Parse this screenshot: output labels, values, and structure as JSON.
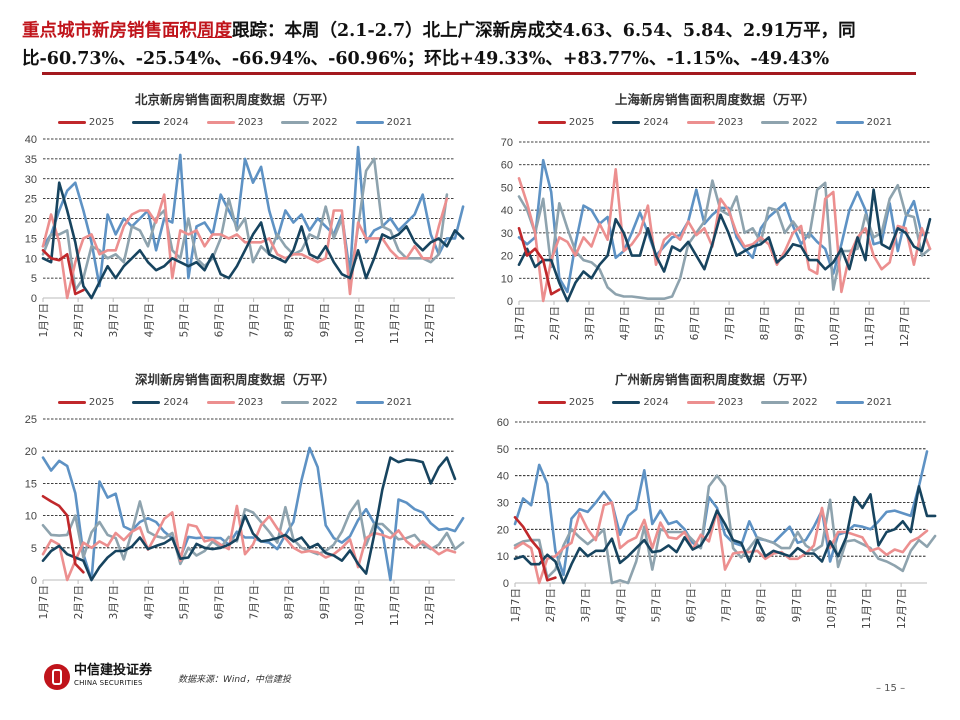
{
  "headline": {
    "highlight": "重点城市新房销售面积",
    "highlight_underlined": "周度",
    "rest": "跟踪：本周（2.1-2.7）北上广深新房成交4.63、6.54、5.84、2.91万平，同比-60.73%、-25.54%、-66.94%、-60.96%；环比+49.33%、+83.77%、-1.15%、-49.43%"
  },
  "footer": {
    "logo_cn": "中信建投证券",
    "logo_en": "CHINA SECURITIES",
    "source": "数据来源：Wind，中信建投",
    "page": "– 15 –"
  },
  "colors": {
    "2025": "#c0282b",
    "2024": "#17445f",
    "2023": "#ec8f8f",
    "2022": "#8ea3ae",
    "2021": "#5e92c4"
  },
  "chart_data": [
    {
      "id": "bj",
      "type": "line",
      "title": "北京新房销售面积周度数据（万平）",
      "ylim": [
        0,
        40
      ],
      "ystep": 5,
      "grid": true,
      "legend": "top",
      "x_ticks": [
        "1月7日",
        "2月7日",
        "3月7日",
        "4月7日",
        "5月7日",
        "6月7日",
        "7月7日",
        "8月7日",
        "9月7日",
        "10月7日",
        "11月7日",
        "12月7日"
      ],
      "series": [
        {
          "name": "2025",
          "values": [
            12,
            10,
            9.5,
            11,
            1,
            2
          ]
        },
        {
          "name": "2024",
          "values": [
            10,
            9,
            29,
            22,
            14,
            3,
            0,
            4,
            8,
            5,
            8,
            10,
            12,
            9,
            7,
            8,
            10,
            9,
            8,
            9,
            7,
            11,
            6,
            5,
            8,
            12,
            16,
            19,
            11,
            10,
            9,
            12,
            18,
            11,
            10,
            13,
            9,
            6,
            5,
            12,
            5,
            10,
            16,
            15,
            16,
            18,
            14,
            12,
            14,
            15,
            13,
            17,
            15
          ]
        },
        {
          "name": "2023",
          "values": [
            13,
            21,
            14,
            0,
            9,
            15,
            16,
            11,
            12,
            12,
            18,
            21,
            22,
            22,
            19,
            26,
            5,
            17,
            16,
            17,
            13,
            16,
            16,
            15,
            16,
            14,
            14,
            14,
            15,
            11,
            10,
            11,
            11,
            10,
            9,
            10,
            22,
            22,
            1,
            19,
            15,
            15,
            15,
            12,
            10,
            10,
            13,
            10,
            10,
            18,
            25
          ]
        },
        {
          "name": "2022",
          "values": [
            11,
            16,
            16,
            17,
            2,
            5,
            13,
            12,
            10,
            11,
            9,
            18,
            17,
            13,
            20,
            22,
            12,
            10,
            20,
            10,
            8,
            10,
            15,
            25,
            17,
            20,
            9,
            13,
            11,
            16,
            13,
            11,
            12,
            16,
            15,
            23,
            15,
            20,
            4,
            18,
            32,
            35,
            18,
            17,
            12,
            10,
            10,
            10,
            9,
            11,
            26
          ]
        },
        {
          "name": "2021",
          "values": [
            13,
            16,
            22,
            27,
            29,
            22,
            14,
            3,
            21,
            16,
            20,
            18,
            20,
            22,
            12,
            20,
            19,
            36,
            5,
            18,
            19,
            16,
            26,
            22,
            18,
            35,
            29,
            33,
            22,
            15,
            22,
            19,
            21,
            17,
            20,
            18,
            16,
            21,
            6,
            38,
            14,
            17,
            18,
            20,
            17,
            19,
            21,
            26,
            16,
            11,
            15,
            15,
            23
          ]
        }
      ]
    },
    {
      "id": "sh",
      "type": "line",
      "title": "上海新房销售面积周度数据（万平）",
      "ylim": [
        0,
        70
      ],
      "ystep": 10,
      "grid": true,
      "legend": "top",
      "x_ticks": [
        "1月7日",
        "2月7日",
        "3月7日",
        "4月7日",
        "5月7日",
        "6月7日",
        "7月7日",
        "8月7日",
        "9月7日",
        "10月7日",
        "11月7日",
        "12月7日"
      ],
      "series": [
        {
          "name": "2025",
          "values": [
            32,
            20,
            23,
            18,
            3,
            5
          ]
        },
        {
          "name": "2024",
          "values": [
            16,
            23,
            15,
            18,
            18,
            8,
            0,
            8,
            13,
            10,
            16,
            20,
            36,
            30,
            20,
            20,
            32,
            20,
            13,
            24,
            22,
            26,
            20,
            14,
            25,
            38,
            30,
            20,
            22,
            24,
            25,
            28,
            17,
            20,
            25,
            24,
            18,
            18,
            14,
            17,
            23,
            14,
            28,
            18,
            49,
            25,
            23,
            32,
            30,
            24,
            22,
            36
          ]
        },
        {
          "name": "2023",
          "values": [
            54,
            43,
            30,
            0,
            18,
            28,
            26,
            20,
            28,
            24,
            34,
            27,
            58,
            22,
            25,
            30,
            42,
            16,
            27,
            30,
            27,
            35,
            29,
            32,
            24,
            45,
            40,
            30,
            24,
            25,
            28,
            25,
            16,
            22,
            30,
            33,
            14,
            12,
            45,
            48,
            4,
            20,
            28,
            32,
            20,
            14,
            17,
            33,
            32,
            16,
            32,
            23
          ]
        },
        {
          "name": "2022",
          "values": [
            46,
            40,
            30,
            45,
            15,
            43,
            32,
            22,
            18,
            17,
            14,
            6,
            3,
            2,
            2,
            1.5,
            1,
            1,
            1,
            2,
            10,
            25,
            30,
            35,
            53,
            40,
            38,
            46,
            30,
            32,
            26,
            41,
            40,
            30,
            35,
            30,
            28,
            49,
            52,
            5,
            22,
            22,
            23,
            38,
            28,
            30,
            45,
            51,
            38,
            37,
            20,
            23
          ]
        },
        {
          "name": "2021",
          "values": [
            28,
            25,
            28,
            62,
            48,
            10,
            4,
            25,
            42,
            40,
            34,
            37,
            19,
            22,
            30,
            39,
            30,
            20,
            24,
            28,
            29,
            35,
            49,
            34,
            38,
            41,
            41,
            28,
            23,
            19,
            32,
            37,
            40,
            43,
            33,
            25,
            30,
            26,
            23,
            12,
            25,
            40,
            48,
            40,
            25,
            26,
            43,
            22,
            37,
            44,
            29
          ]
        }
      ]
    },
    {
      "id": "sz",
      "type": "line",
      "title": "深圳新房销售面积周度数据（万平）",
      "ylim": [
        0,
        25
      ],
      "ystep": 5,
      "grid": true,
      "legend": "top",
      "x_ticks": [
        "1月7日",
        "2月7日",
        "3月7日",
        "4月7日",
        "5月7日",
        "6月7日",
        "7月7日",
        "8月7日",
        "9月7日",
        "10月7日",
        "11月7日",
        "12月7日"
      ],
      "series": [
        {
          "name": "2025",
          "values": [
            13,
            12.2,
            11.5,
            10,
            2.5,
            1.2
          ]
        },
        {
          "name": "2024",
          "values": [
            3,
            4.5,
            5.3,
            4,
            3.5,
            3,
            0,
            2,
            3.5,
            4.5,
            4.5,
            5.2,
            6.6,
            4.8,
            5.3,
            5.7,
            6.5,
            3.3,
            3.5,
            5.6,
            5,
            4.8,
            5,
            5.5,
            6.3,
            10,
            7.2,
            6,
            6.2,
            6.5,
            7,
            6,
            6.6,
            5,
            5.6,
            4.2,
            3.8,
            3,
            4.6,
            2.5,
            1,
            7,
            14,
            19,
            18.3,
            18.7,
            18.6,
            18.3,
            15,
            17.5,
            19,
            15.7
          ]
        },
        {
          "name": "2023",
          "values": [
            4,
            6.2,
            5.5,
            0,
            3,
            5.8,
            5,
            6,
            5.3,
            7.3,
            6.2,
            7.5,
            8.2,
            4.7,
            7,
            9.5,
            10.5,
            3,
            8.6,
            8.3,
            6,
            6.3,
            5.5,
            4.8,
            11.5,
            4,
            5.5,
            8.5,
            9.9,
            8,
            6.5,
            5,
            4.3,
            4.5,
            4.3,
            3.5,
            4,
            5,
            6.3,
            2,
            6.5,
            7.3,
            7,
            6.5,
            7.7,
            6,
            5,
            6,
            5,
            4,
            4.7,
            4.3
          ]
        },
        {
          "name": "2022",
          "values": [
            8.5,
            7,
            6.9,
            7,
            10,
            3.5,
            7.4,
            9,
            7,
            6.5,
            3.2,
            7.5,
            12.2,
            7.5,
            6.8,
            6.5,
            7.3,
            2.5,
            5,
            3.8,
            4.5,
            6,
            5,
            6.7,
            6,
            11,
            10.5,
            9,
            7.5,
            5.8,
            11.3,
            6.3,
            5,
            4.5,
            4,
            4.5,
            5.5,
            7.5,
            10.5,
            12.3,
            5.4,
            8.7,
            8.7,
            7.5,
            6.3,
            6.5,
            7,
            5.5,
            4.8,
            5.5,
            7.3,
            4.8,
            5.8
          ]
        },
        {
          "name": "2021",
          "values": [
            19,
            17,
            18.5,
            17.7,
            13.5,
            4,
            0,
            15.3,
            12.8,
            13.4,
            8.3,
            7.7,
            9,
            9.6,
            9,
            7.5,
            6.5,
            3.5,
            6.7,
            6.5,
            6.6,
            6.5,
            6.5,
            5.5,
            7.5,
            6.6,
            6.6,
            6,
            5.8,
            4.8,
            7,
            9,
            15.5,
            20.5,
            17.5,
            8.5,
            6.5,
            5.8,
            6.8,
            9.3,
            11,
            8.8,
            7.5,
            0,
            12.5,
            12,
            11,
            10.5,
            8.8,
            7.8,
            8,
            7.6,
            9.6
          ]
        }
      ]
    },
    {
      "id": "gz",
      "type": "line",
      "title": "广州新房销售面积周度数据（万平）",
      "ylim": [
        0,
        60
      ],
      "ystep": 10,
      "grid": true,
      "legend": "top",
      "x_ticks": [
        "1月7日",
        "2月7日",
        "3月7日",
        "4月7日",
        "5月7日",
        "6月7日",
        "7月7日",
        "8月7日",
        "9月7日",
        "10月7日",
        "11月7日",
        "12月7日"
      ],
      "series": [
        {
          "name": "2025",
          "values": [
            24.5,
            21,
            16,
            12.5,
            1,
            2
          ]
        },
        {
          "name": "2024",
          "values": [
            9,
            10,
            7,
            7,
            10.5,
            8,
            0,
            7,
            13,
            10,
            12,
            12,
            16.5,
            7.5,
            10,
            13,
            16,
            11.5,
            12,
            14,
            11.5,
            17,
            12.5,
            14,
            19,
            27,
            22,
            16,
            15,
            8,
            16,
            10,
            12,
            11,
            10,
            13,
            11,
            11,
            8,
            15.5,
            10,
            17,
            32,
            28,
            33,
            14,
            19,
            20,
            23,
            19,
            36,
            25,
            25
          ]
        },
        {
          "name": "2023",
          "values": [
            13,
            15,
            13,
            0,
            9,
            10,
            13,
            15,
            26,
            20,
            16,
            29,
            30,
            13,
            15.5,
            17,
            23.5,
            13,
            22.5,
            17,
            16.5,
            19,
            12.5,
            18,
            15.5,
            27,
            5,
            11,
            11.5,
            11.5,
            12,
            9,
            11,
            11.5,
            9,
            9,
            11,
            14,
            28,
            13,
            19,
            19,
            18,
            17,
            12,
            13,
            10.5,
            12.5,
            11.5,
            15.5,
            17,
            19.5
          ]
        },
        {
          "name": "2022",
          "values": [
            14,
            15.5,
            16,
            16,
            2,
            5,
            14,
            20,
            17,
            14.5,
            17,
            20,
            0,
            1,
            0,
            8,
            21,
            5,
            20,
            19,
            19,
            19,
            16,
            13,
            36,
            40,
            36,
            13,
            9.5,
            13,
            17,
            16,
            15,
            13,
            13,
            19,
            14,
            12,
            14,
            31,
            6,
            15.5,
            16,
            14.5,
            13,
            9,
            8,
            6.5,
            4.5,
            12,
            16,
            13.5,
            17.5
          ]
        },
        {
          "name": "2021",
          "values": [
            22,
            31.5,
            29,
            44,
            37,
            12,
            3,
            24,
            27.5,
            26.5,
            30,
            34,
            30,
            18,
            25,
            27.5,
            42,
            22,
            27,
            22,
            23,
            20,
            15,
            13,
            32,
            28,
            18,
            15,
            14,
            23,
            16.5,
            16,
            15,
            18,
            21,
            15,
            16,
            21,
            27,
            8,
            18,
            19,
            21.5,
            21,
            20,
            23,
            26.5,
            27,
            26,
            25,
            36,
            49
          ]
        }
      ]
    }
  ]
}
